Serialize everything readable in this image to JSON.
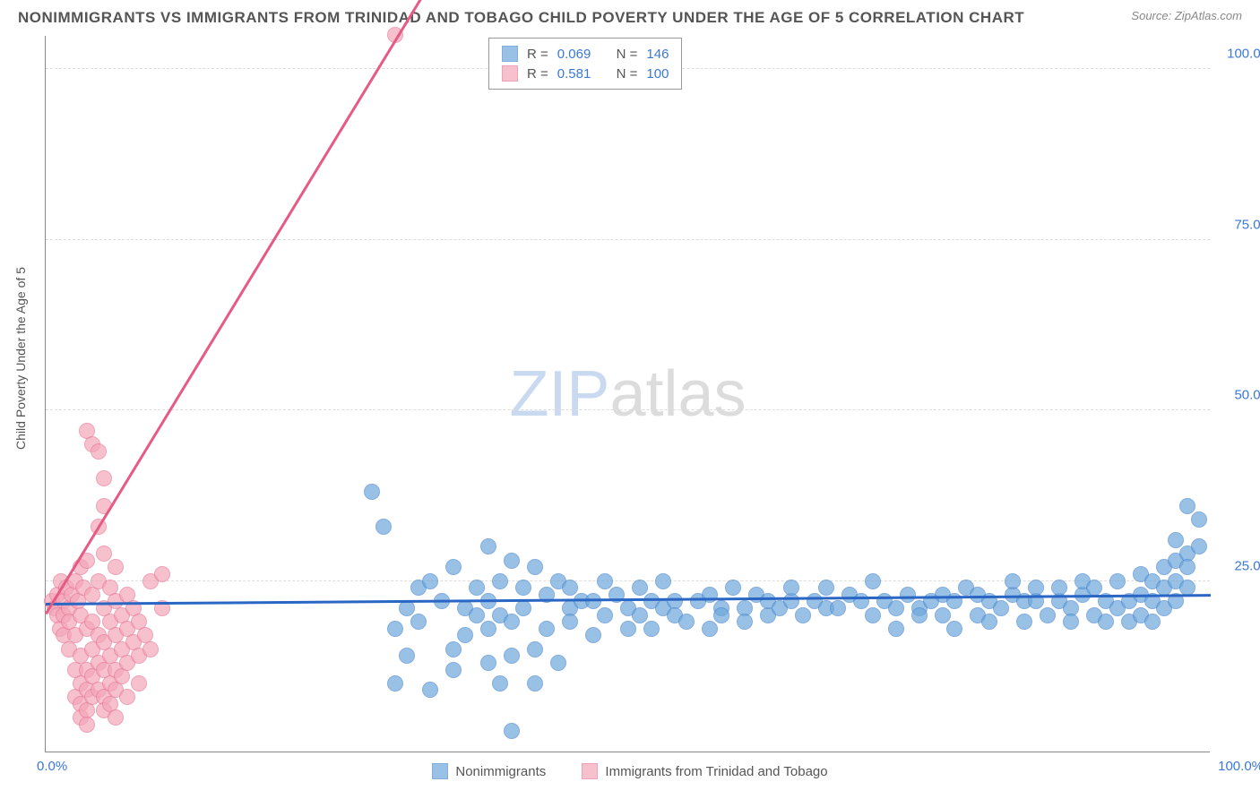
{
  "title": "NONIMMIGRANTS VS IMMIGRANTS FROM TRINIDAD AND TOBAGO CHILD POVERTY UNDER THE AGE OF 5 CORRELATION CHART",
  "source_label": "Source:",
  "source_value": "ZipAtlas.com",
  "ylabel": "Child Poverty Under the Age of 5",
  "watermark_a": "ZIP",
  "watermark_b": "atlas",
  "chart": {
    "type": "scatter",
    "xlim": [
      0,
      100
    ],
    "ylim": [
      0,
      105
    ],
    "ytick_values": [
      25,
      50,
      75,
      100
    ],
    "ytick_labels": [
      "25.0%",
      "50.0%",
      "75.0%",
      "100.0%"
    ],
    "xtick_left": "0.0%",
    "xtick_right": "100.0%",
    "background_color": "#ffffff",
    "grid_color": "#dddddd",
    "axis_color": "#888888",
    "tick_color": "#3b78d8",
    "marker_radius": 9,
    "marker_fill_opacity": 0.35,
    "series": [
      {
        "name": "Nonimmigrants",
        "color": "#6fa8dc",
        "stroke": "#4f8bd0",
        "R": "0.069",
        "N": "146",
        "trend": {
          "x1": 0,
          "y1": 21.5,
          "x2": 100,
          "y2": 22.8,
          "color": "#2a66c4",
          "width": 2.5
        },
        "points": [
          [
            28,
            38
          ],
          [
            29,
            33
          ],
          [
            30,
            18
          ],
          [
            30,
            10
          ],
          [
            31,
            21
          ],
          [
            31,
            14
          ],
          [
            32,
            24
          ],
          [
            32,
            19
          ],
          [
            33,
            25
          ],
          [
            33,
            9
          ],
          [
            34,
            22
          ],
          [
            35,
            27
          ],
          [
            35,
            15
          ],
          [
            35,
            12
          ],
          [
            36,
            21
          ],
          [
            36,
            17
          ],
          [
            37,
            24
          ],
          [
            37,
            20
          ],
          [
            38,
            30
          ],
          [
            38,
            22
          ],
          [
            38,
            18
          ],
          [
            38,
            13
          ],
          [
            39,
            25
          ],
          [
            39,
            20
          ],
          [
            39,
            10
          ],
          [
            40,
            28
          ],
          [
            40,
            19
          ],
          [
            40,
            14
          ],
          [
            40,
            3
          ],
          [
            41,
            24
          ],
          [
            41,
            21
          ],
          [
            42,
            27
          ],
          [
            42,
            15
          ],
          [
            42,
            10
          ],
          [
            43,
            23
          ],
          [
            43,
            18
          ],
          [
            44,
            25
          ],
          [
            44,
            13
          ],
          [
            45,
            21
          ],
          [
            45,
            19
          ],
          [
            45,
            24
          ],
          [
            46,
            22
          ],
          [
            47,
            22
          ],
          [
            47,
            17
          ],
          [
            48,
            25
          ],
          [
            48,
            20
          ],
          [
            49,
            23
          ],
          [
            50,
            21
          ],
          [
            50,
            18
          ],
          [
            51,
            24
          ],
          [
            51,
            20
          ],
          [
            52,
            22
          ],
          [
            52,
            18
          ],
          [
            53,
            25
          ],
          [
            53,
            21
          ],
          [
            54,
            22
          ],
          [
            54,
            20
          ],
          [
            55,
            19
          ],
          [
            56,
            22
          ],
          [
            57,
            23
          ],
          [
            57,
            18
          ],
          [
            58,
            21
          ],
          [
            58,
            20
          ],
          [
            59,
            24
          ],
          [
            60,
            21
          ],
          [
            60,
            19
          ],
          [
            61,
            23
          ],
          [
            62,
            20
          ],
          [
            62,
            22
          ],
          [
            63,
            21
          ],
          [
            64,
            22
          ],
          [
            64,
            24
          ],
          [
            65,
            20
          ],
          [
            66,
            22
          ],
          [
            67,
            21
          ],
          [
            67,
            24
          ],
          [
            68,
            21
          ],
          [
            69,
            23
          ],
          [
            70,
            22
          ],
          [
            71,
            25
          ],
          [
            71,
            20
          ],
          [
            72,
            22
          ],
          [
            73,
            21
          ],
          [
            73,
            18
          ],
          [
            74,
            23
          ],
          [
            75,
            21
          ],
          [
            75,
            20
          ],
          [
            76,
            22
          ],
          [
            77,
            23
          ],
          [
            77,
            20
          ],
          [
            78,
            18
          ],
          [
            78,
            22
          ],
          [
            79,
            24
          ],
          [
            80,
            23
          ],
          [
            80,
            20
          ],
          [
            81,
            22
          ],
          [
            81,
            19
          ],
          [
            82,
            21
          ],
          [
            83,
            23
          ],
          [
            83,
            25
          ],
          [
            84,
            22
          ],
          [
            84,
            19
          ],
          [
            85,
            22
          ],
          [
            85,
            24
          ],
          [
            86,
            20
          ],
          [
            87,
            22
          ],
          [
            87,
            24
          ],
          [
            88,
            21
          ],
          [
            88,
            19
          ],
          [
            89,
            23
          ],
          [
            89,
            25
          ],
          [
            90,
            20
          ],
          [
            90,
            24
          ],
          [
            91,
            22
          ],
          [
            91,
            19
          ],
          [
            92,
            25
          ],
          [
            92,
            21
          ],
          [
            93,
            22
          ],
          [
            93,
            19
          ],
          [
            94,
            26
          ],
          [
            94,
            23
          ],
          [
            94,
            20
          ],
          [
            95,
            25
          ],
          [
            95,
            22
          ],
          [
            95,
            19
          ],
          [
            96,
            27
          ],
          [
            96,
            24
          ],
          [
            96,
            21
          ],
          [
            97,
            28
          ],
          [
            97,
            25
          ],
          [
            97,
            22
          ],
          [
            97,
            31
          ],
          [
            98,
            29
          ],
          [
            98,
            27
          ],
          [
            98,
            24
          ],
          [
            98,
            36
          ],
          [
            99,
            30
          ],
          [
            99,
            34
          ]
        ]
      },
      {
        "name": "Immigrants from Trinidad and Tobago",
        "color": "#f4a6b8",
        "stroke": "#e87c9a",
        "R": "0.581",
        "N": "100",
        "trend": {
          "x1": 0,
          "y1": 20,
          "x2": 30,
          "y2": 104,
          "dash_from_x": 36,
          "color": "#e65a84",
          "width": 2.5
        },
        "points": [
          [
            0.5,
            22
          ],
          [
            0.8,
            21
          ],
          [
            1,
            20
          ],
          [
            1,
            23
          ],
          [
            1.2,
            18
          ],
          [
            1.3,
            25
          ],
          [
            1.5,
            22
          ],
          [
            1.5,
            20
          ],
          [
            1.5,
            17
          ],
          [
            1.8,
            24
          ],
          [
            2,
            21
          ],
          [
            2,
            19
          ],
          [
            2,
            15
          ],
          [
            2.2,
            23
          ],
          [
            2.5,
            25
          ],
          [
            2.5,
            17
          ],
          [
            2.5,
            12
          ],
          [
            2.5,
            8
          ],
          [
            2.8,
            22
          ],
          [
            3,
            20
          ],
          [
            3,
            27
          ],
          [
            3,
            14
          ],
          [
            3,
            10
          ],
          [
            3,
            7
          ],
          [
            3,
            5
          ],
          [
            3.2,
            24
          ],
          [
            3.5,
            28
          ],
          [
            3.5,
            18
          ],
          [
            3.5,
            12
          ],
          [
            3.5,
            9
          ],
          [
            3.5,
            6
          ],
          [
            3.5,
            4
          ],
          [
            3.5,
            47
          ],
          [
            4,
            23
          ],
          [
            4,
            19
          ],
          [
            4,
            15
          ],
          [
            4,
            11
          ],
          [
            4,
            8
          ],
          [
            4,
            45
          ],
          [
            4.5,
            44
          ],
          [
            4.5,
            25
          ],
          [
            4.5,
            17
          ],
          [
            4.5,
            13
          ],
          [
            4.5,
            9
          ],
          [
            4.5,
            33
          ],
          [
            5,
            29
          ],
          [
            5,
            21
          ],
          [
            5,
            16
          ],
          [
            5,
            12
          ],
          [
            5,
            8
          ],
          [
            5,
            6
          ],
          [
            5,
            36
          ],
          [
            5,
            40
          ],
          [
            5.5,
            24
          ],
          [
            5.5,
            19
          ],
          [
            5.5,
            14
          ],
          [
            5.5,
            10
          ],
          [
            5.5,
            7
          ],
          [
            6,
            27
          ],
          [
            6,
            22
          ],
          [
            6,
            17
          ],
          [
            6,
            12
          ],
          [
            6,
            9
          ],
          [
            6,
            5
          ],
          [
            6.5,
            20
          ],
          [
            6.5,
            15
          ],
          [
            6.5,
            11
          ],
          [
            7,
            23
          ],
          [
            7,
            18
          ],
          [
            7,
            13
          ],
          [
            7,
            8
          ],
          [
            7.5,
            21
          ],
          [
            7.5,
            16
          ],
          [
            8,
            19
          ],
          [
            8,
            14
          ],
          [
            8,
            10
          ],
          [
            8.5,
            17
          ],
          [
            9,
            25
          ],
          [
            9,
            15
          ],
          [
            10,
            21
          ],
          [
            10,
            26
          ],
          [
            30,
            105
          ]
        ]
      }
    ]
  },
  "legend_labels": {
    "R": "R =",
    "N": "N ="
  }
}
